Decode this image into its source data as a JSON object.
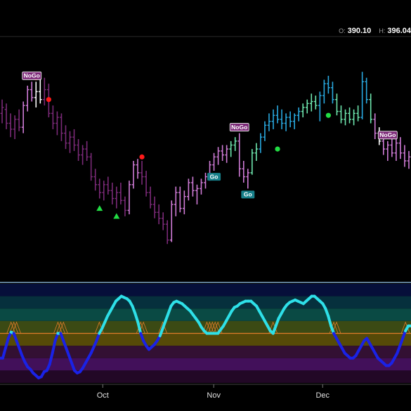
{
  "header": {
    "open_label": "O:",
    "open_value": "390.10",
    "high_label": "H:",
    "high_value": "396.04"
  },
  "colors": {
    "background": "#000000",
    "go_strong": "#29a9e0",
    "go_weak": "#6ee6ae",
    "nogo_strong": "#7b2a78",
    "nogo_weak": "#cf7bd6",
    "neutral": "#ffffff",
    "oscillator_go": "#2ee0e8",
    "oscillator_nogo": "#1a22e6",
    "zero_line": "#e07c2a"
  },
  "chart_data": {
    "type": "ohlc",
    "x_ticks": [
      "Oct",
      "Nov",
      "Dec"
    ],
    "price_bars": [
      {
        "o": 384,
        "h": 391,
        "l": 379,
        "c": 387,
        "trend": "nogo_strong"
      },
      {
        "o": 386,
        "h": 389,
        "l": 376,
        "c": 379,
        "trend": "nogo_strong"
      },
      {
        "o": 379,
        "h": 384,
        "l": 372,
        "c": 376,
        "trend": "nogo_strong"
      },
      {
        "o": 376,
        "h": 383,
        "l": 371,
        "c": 381,
        "trend": "nogo_strong"
      },
      {
        "o": 381,
        "h": 386,
        "l": 375,
        "c": 377,
        "trend": "nogo_strong"
      },
      {
        "o": 377,
        "h": 390,
        "l": 374,
        "c": 388,
        "trend": "nogo_weak"
      },
      {
        "o": 388,
        "h": 398,
        "l": 385,
        "c": 396,
        "trend": "nogo_weak"
      },
      {
        "o": 396,
        "h": 400,
        "l": 390,
        "c": 392,
        "trend": "nogo_weak"
      },
      {
        "o": 392,
        "h": 400,
        "l": 387,
        "c": 395,
        "trend": "neutral"
      },
      {
        "o": 395,
        "h": 401,
        "l": 389,
        "c": 391,
        "trend": "neutral"
      },
      {
        "o": 391,
        "h": 402,
        "l": 388,
        "c": 396,
        "trend": "nogo_strong"
      },
      {
        "o": 396,
        "h": 399,
        "l": 382,
        "c": 384,
        "trend": "nogo_strong"
      },
      {
        "o": 384,
        "h": 388,
        "l": 376,
        "c": 379,
        "trend": "nogo_strong"
      },
      {
        "o": 379,
        "h": 385,
        "l": 373,
        "c": 382,
        "trend": "nogo_strong"
      },
      {
        "o": 382,
        "h": 384,
        "l": 370,
        "c": 374,
        "trend": "nogo_strong"
      },
      {
        "o": 374,
        "h": 378,
        "l": 366,
        "c": 369,
        "trend": "nogo_strong"
      },
      {
        "o": 369,
        "h": 375,
        "l": 364,
        "c": 372,
        "trend": "nogo_strong"
      },
      {
        "o": 372,
        "h": 376,
        "l": 365,
        "c": 368,
        "trend": "nogo_strong"
      },
      {
        "o": 368,
        "h": 371,
        "l": 360,
        "c": 363,
        "trend": "nogo_strong"
      },
      {
        "o": 363,
        "h": 368,
        "l": 358,
        "c": 366,
        "trend": "nogo_strong"
      },
      {
        "o": 366,
        "h": 370,
        "l": 360,
        "c": 362,
        "trend": "nogo_strong"
      },
      {
        "o": 362,
        "h": 364,
        "l": 350,
        "c": 352,
        "trend": "nogo_strong"
      },
      {
        "o": 352,
        "h": 356,
        "l": 345,
        "c": 348,
        "trend": "nogo_strong"
      },
      {
        "o": 348,
        "h": 351,
        "l": 341,
        "c": 344,
        "trend": "nogo_strong"
      },
      {
        "o": 344,
        "h": 350,
        "l": 340,
        "c": 348,
        "trend": "nogo_strong"
      },
      {
        "o": 348,
        "h": 352,
        "l": 343,
        "c": 345,
        "trend": "nogo_strong"
      },
      {
        "o": 345,
        "h": 349,
        "l": 338,
        "c": 341,
        "trend": "nogo_strong"
      },
      {
        "o": 341,
        "h": 347,
        "l": 336,
        "c": 344,
        "trend": "nogo_strong"
      },
      {
        "o": 344,
        "h": 349,
        "l": 338,
        "c": 340,
        "trend": "nogo_strong"
      },
      {
        "o": 340,
        "h": 342,
        "l": 332,
        "c": 335,
        "trend": "nogo_strong"
      },
      {
        "o": 335,
        "h": 350,
        "l": 333,
        "c": 348,
        "trend": "nogo_weak"
      },
      {
        "o": 348,
        "h": 360,
        "l": 346,
        "c": 358,
        "trend": "nogo_weak"
      },
      {
        "o": 358,
        "h": 361,
        "l": 351,
        "c": 354,
        "trend": "nogo_weak"
      },
      {
        "o": 354,
        "h": 360,
        "l": 348,
        "c": 352,
        "trend": "nogo_strong"
      },
      {
        "o": 352,
        "h": 355,
        "l": 342,
        "c": 344,
        "trend": "nogo_strong"
      },
      {
        "o": 344,
        "h": 347,
        "l": 336,
        "c": 338,
        "trend": "nogo_strong"
      },
      {
        "o": 338,
        "h": 342,
        "l": 331,
        "c": 334,
        "trend": "nogo_strong"
      },
      {
        "o": 334,
        "h": 338,
        "l": 328,
        "c": 331,
        "trend": "nogo_strong"
      },
      {
        "o": 331,
        "h": 334,
        "l": 325,
        "c": 328,
        "trend": "nogo_strong"
      },
      {
        "o": 328,
        "h": 330,
        "l": 318,
        "c": 320,
        "trend": "nogo_strong"
      },
      {
        "o": 320,
        "h": 340,
        "l": 319,
        "c": 338,
        "trend": "nogo_weak"
      },
      {
        "o": 338,
        "h": 347,
        "l": 332,
        "c": 344,
        "trend": "nogo_weak"
      },
      {
        "o": 344,
        "h": 347,
        "l": 334,
        "c": 336,
        "trend": "nogo_weak"
      },
      {
        "o": 336,
        "h": 345,
        "l": 333,
        "c": 342,
        "trend": "nogo_weak"
      },
      {
        "o": 342,
        "h": 351,
        "l": 340,
        "c": 349,
        "trend": "nogo_weak"
      },
      {
        "o": 349,
        "h": 352,
        "l": 342,
        "c": 345,
        "trend": "nogo_weak"
      },
      {
        "o": 345,
        "h": 348,
        "l": 338,
        "c": 346,
        "trend": "nogo_weak"
      },
      {
        "o": 346,
        "h": 351,
        "l": 343,
        "c": 349,
        "trend": "nogo_weak"
      },
      {
        "o": 349,
        "h": 354,
        "l": 346,
        "c": 352,
        "trend": "nogo_weak"
      },
      {
        "o": 352,
        "h": 360,
        "l": 350,
        "c": 358,
        "trend": "nogo_weak"
      },
      {
        "o": 358,
        "h": 364,
        "l": 355,
        "c": 362,
        "trend": "nogo_weak"
      },
      {
        "o": 362,
        "h": 367,
        "l": 358,
        "c": 365,
        "trend": "nogo_weak"
      },
      {
        "o": 365,
        "h": 368,
        "l": 360,
        "c": 363,
        "trend": "nogo_weak"
      },
      {
        "o": 363,
        "h": 368,
        "l": 359,
        "c": 366,
        "trend": "nogo_weak"
      },
      {
        "o": 366,
        "h": 370,
        "l": 362,
        "c": 368,
        "trend": "go_weak"
      },
      {
        "o": 368,
        "h": 372,
        "l": 365,
        "c": 370,
        "trend": "go_weak"
      },
      {
        "o": 370,
        "h": 374,
        "l": 352,
        "c": 356,
        "trend": "nogo_weak"
      },
      {
        "o": 356,
        "h": 360,
        "l": 349,
        "c": 352,
        "trend": "nogo_weak"
      },
      {
        "o": 352,
        "h": 356,
        "l": 346,
        "c": 354,
        "trend": "nogo_weak"
      },
      {
        "o": 354,
        "h": 366,
        "l": 353,
        "c": 364,
        "trend": "go_weak"
      },
      {
        "o": 364,
        "h": 369,
        "l": 360,
        "c": 366,
        "trend": "go_weak"
      },
      {
        "o": 366,
        "h": 374,
        "l": 364,
        "c": 372,
        "trend": "go_strong"
      },
      {
        "o": 372,
        "h": 380,
        "l": 370,
        "c": 378,
        "trend": "go_strong"
      },
      {
        "o": 378,
        "h": 384,
        "l": 375,
        "c": 380,
        "trend": "go_strong"
      },
      {
        "o": 380,
        "h": 386,
        "l": 376,
        "c": 383,
        "trend": "go_strong"
      },
      {
        "o": 383,
        "h": 388,
        "l": 379,
        "c": 381,
        "trend": "go_strong"
      },
      {
        "o": 381,
        "h": 386,
        "l": 376,
        "c": 379,
        "trend": "go_strong"
      },
      {
        "o": 379,
        "h": 384,
        "l": 375,
        "c": 382,
        "trend": "go_strong"
      },
      {
        "o": 382,
        "h": 385,
        "l": 377,
        "c": 380,
        "trend": "go_strong"
      },
      {
        "o": 380,
        "h": 384,
        "l": 376,
        "c": 383,
        "trend": "go_strong"
      },
      {
        "o": 383,
        "h": 387,
        "l": 380,
        "c": 385,
        "trend": "go_strong"
      },
      {
        "o": 385,
        "h": 389,
        "l": 382,
        "c": 387,
        "trend": "go_weak"
      },
      {
        "o": 387,
        "h": 391,
        "l": 384,
        "c": 389,
        "trend": "go_weak"
      },
      {
        "o": 389,
        "h": 394,
        "l": 385,
        "c": 390,
        "trend": "go_weak"
      },
      {
        "o": 390,
        "h": 393,
        "l": 386,
        "c": 388,
        "trend": "go_weak"
      },
      {
        "o": 388,
        "h": 395,
        "l": 380,
        "c": 393,
        "trend": "go_strong"
      },
      {
        "o": 393,
        "h": 401,
        "l": 389,
        "c": 399,
        "trend": "go_strong"
      },
      {
        "o": 399,
        "h": 403,
        "l": 394,
        "c": 397,
        "trend": "go_strong"
      },
      {
        "o": 397,
        "h": 400,
        "l": 389,
        "c": 391,
        "trend": "go_strong"
      },
      {
        "o": 391,
        "h": 394,
        "l": 383,
        "c": 385,
        "trend": "go_weak"
      },
      {
        "o": 385,
        "h": 388,
        "l": 379,
        "c": 381,
        "trend": "go_weak"
      },
      {
        "o": 381,
        "h": 386,
        "l": 378,
        "c": 384,
        "trend": "go_weak"
      },
      {
        "o": 384,
        "h": 387,
        "l": 379,
        "c": 381,
        "trend": "go_weak"
      },
      {
        "o": 381,
        "h": 386,
        "l": 378,
        "c": 384,
        "trend": "go_weak"
      },
      {
        "o": 384,
        "h": 388,
        "l": 380,
        "c": 382,
        "trend": "go_weak"
      },
      {
        "o": 382,
        "h": 405,
        "l": 381,
        "c": 400,
        "trend": "go_strong"
      },
      {
        "o": 400,
        "h": 402,
        "l": 389,
        "c": 391,
        "trend": "go_strong"
      },
      {
        "o": 391,
        "h": 394,
        "l": 379,
        "c": 381,
        "trend": "go_weak"
      },
      {
        "o": 381,
        "h": 384,
        "l": 371,
        "c": 374,
        "trend": "nogo_weak"
      },
      {
        "o": 374,
        "h": 377,
        "l": 368,
        "c": 370,
        "trend": "neutral"
      },
      {
        "o": 370,
        "h": 373,
        "l": 363,
        "c": 366,
        "trend": "nogo_weak"
      },
      {
        "o": 366,
        "h": 370,
        "l": 360,
        "c": 368,
        "trend": "nogo_weak"
      },
      {
        "o": 368,
        "h": 372,
        "l": 362,
        "c": 364,
        "trend": "nogo_weak"
      },
      {
        "o": 364,
        "h": 371,
        "l": 360,
        "c": 369,
        "trend": "nogo_weak"
      },
      {
        "o": 369,
        "h": 372,
        "l": 361,
        "c": 364,
        "trend": "nogo_weak"
      },
      {
        "o": 364,
        "h": 368,
        "l": 357,
        "c": 360,
        "trend": "nogo_weak"
      },
      {
        "o": 360,
        "h": 365,
        "l": 356,
        "c": 362,
        "trend": "nogo_weak"
      }
    ],
    "signal_labels": [
      {
        "text": "NoGo",
        "bar": 7,
        "kind": "nogo"
      },
      {
        "text": "NoGo",
        "bar": 56,
        "kind": "nogo"
      },
      {
        "text": "Go",
        "bar": 50,
        "kind": "go"
      },
      {
        "text": "Go",
        "bar": 58,
        "kind": "go"
      },
      {
        "text": "NoGo",
        "bar": 91,
        "kind": "nogo"
      }
    ],
    "markers": [
      {
        "shape": "circle",
        "color": "#ff1a1a",
        "bar": 8,
        "value": 402
      },
      {
        "shape": "circle",
        "color": "#ff1a1a",
        "bar": 11,
        "value": 391
      },
      {
        "shape": "circle",
        "color": "#ff1a1a",
        "bar": 33,
        "value": 362
      },
      {
        "shape": "triangle",
        "color": "#22dd44",
        "bar": 23,
        "value": 336
      },
      {
        "shape": "triangle",
        "color": "#22dd44",
        "bar": 27,
        "value": 332
      },
      {
        "shape": "circle",
        "color": "#22dd44",
        "bar": 65,
        "value": 366
      },
      {
        "shape": "circle",
        "color": "#22dd44",
        "bar": 77,
        "value": 383
      }
    ],
    "oscillator": [
      -2.0,
      -2.0,
      -1.2,
      -0.4,
      0.1,
      0.0,
      -0.6,
      -1.2,
      -1.8,
      -2.3,
      -2.7,
      -2.9,
      -3.2,
      -3.4,
      -3.6,
      -3.5,
      -3.1,
      -3.0,
      -2.5,
      -1.6,
      -0.6,
      0.0,
      0.0,
      -0.6,
      -1.2,
      -1.8,
      -2.4,
      -3.0,
      -3.2,
      -3.1,
      -2.8,
      -2.4,
      -2.0,
      -1.6,
      -1.1,
      -0.6,
      0.0,
      0.4,
      0.9,
      1.4,
      1.8,
      2.2,
      2.6,
      2.8,
      3.0,
      2.9,
      2.8,
      2.6,
      2.2,
      1.6,
      0.9,
      0.0,
      -0.6,
      -1.0,
      -1.3,
      -1.1,
      -0.9,
      -0.6,
      -0.2,
      0.4,
      1.0,
      1.6,
      2.2,
      2.5,
      2.6,
      2.5,
      2.4,
      2.2,
      2.0,
      1.8,
      1.5,
      1.2,
      0.9,
      0.5,
      0.2,
      0.0,
      0.0,
      0.0,
      0.0,
      0.0,
      0.3,
      0.6,
      1.0,
      1.4,
      1.8,
      2.1,
      2.2,
      2.4,
      2.5,
      2.6,
      2.6,
      2.6,
      2.4,
      2.2,
      1.8,
      1.4,
      1.0,
      0.6,
      0.2,
      0.0,
      0.6,
      1.2,
      1.6,
      2.0,
      2.3,
      2.5,
      2.6,
      2.7,
      2.6,
      2.5,
      2.4,
      2.6,
      2.8,
      3.0,
      3.0,
      2.8,
      2.6,
      2.4,
      2.0,
      1.4,
      0.6,
      0.0,
      -0.4,
      -0.8,
      -1.2,
      -1.6,
      -1.8,
      -2.0,
      -2.0,
      -1.8,
      -1.4,
      -1.0,
      -0.6,
      -0.4,
      -0.8,
      -1.2,
      -1.6,
      -2.0,
      -2.2,
      -2.4,
      -2.6,
      -2.6,
      -2.4,
      -2.0,
      -1.6,
      -1.0,
      -0.4,
      0.2,
      0.6,
      0.6
    ],
    "oscillator_xlim": [
      0,
      149
    ],
    "oscillator_ylim": [
      -4,
      4
    ],
    "oscillator_bands": [
      {
        "from": 3.0,
        "to": 4,
        "color": "#060f3a"
      },
      {
        "from": 2.0,
        "to": 3.0,
        "color": "#06303d"
      },
      {
        "from": 1.0,
        "to": 2.0,
        "color": "#0a4a44"
      },
      {
        "from": 0.0,
        "to": 1.0,
        "color": "#3b4a14"
      },
      {
        "from": -1.0,
        "to": 0.0,
        "color": "#564a08"
      },
      {
        "from": -2.0,
        "to": -1.0,
        "color": "#331033"
      },
      {
        "from": -3.0,
        "to": -2.0,
        "color": "#42105a"
      },
      {
        "from": -4,
        "to": -3.0,
        "color": "#220826"
      }
    ],
    "price_ylim": [
      300,
      420
    ],
    "tick_positions": {
      "Oct": 0.25,
      "Nov": 0.52,
      "Dec": 0.785
    }
  }
}
